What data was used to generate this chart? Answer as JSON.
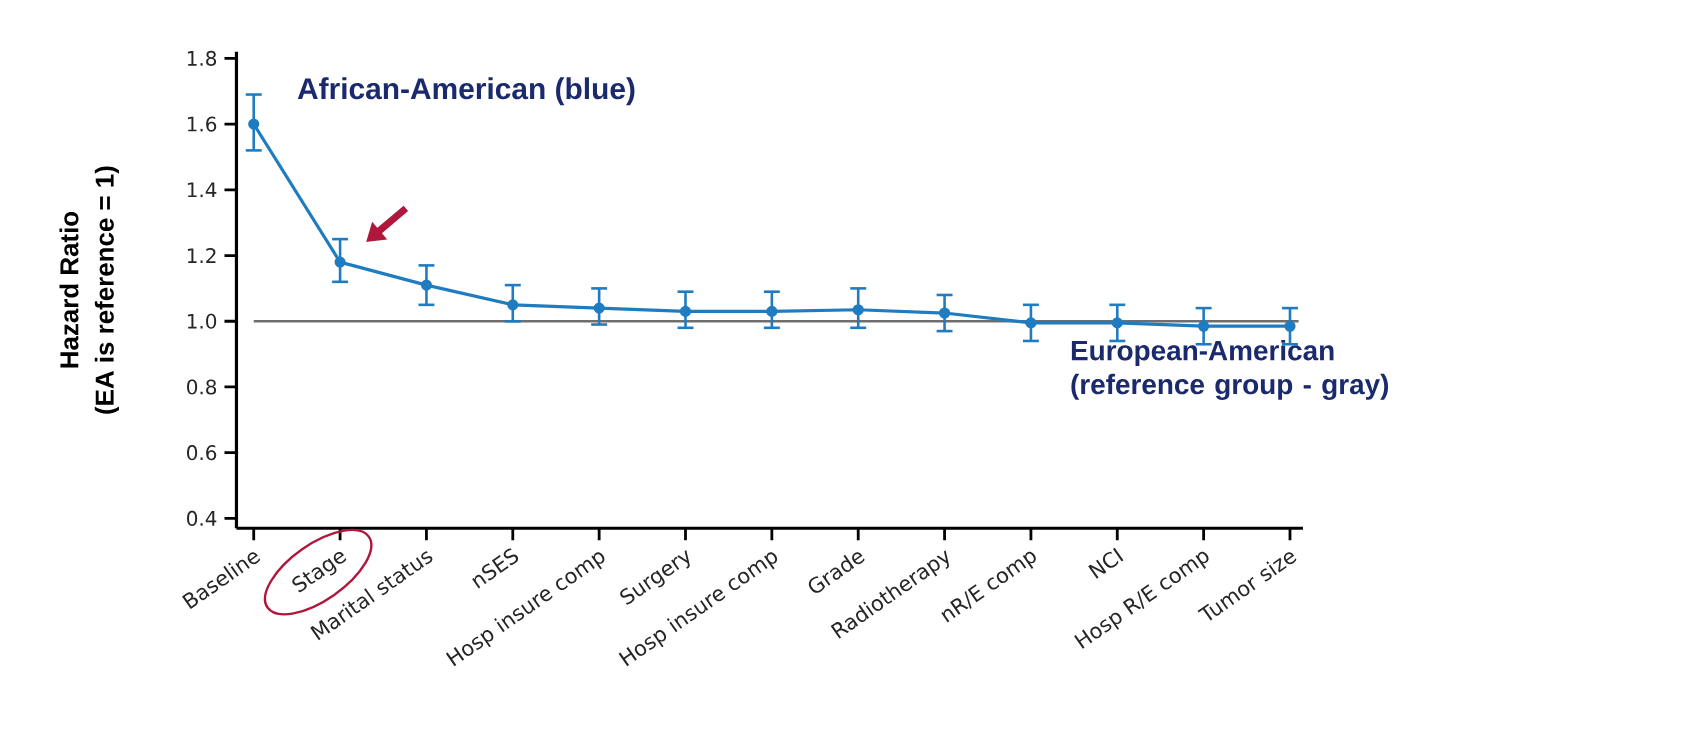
{
  "chart_data": {
    "type": "line",
    "ylabel": "Hazard Ratio",
    "annotations": [
      "(EA is reference = 1)"
    ],
    "categories": [
      "Baseline",
      "Stage",
      "Marital status",
      "nSES",
      "Hosp insure comp",
      "Surgery",
      "Hosp insure comp",
      "Grade",
      "Radiotherapy",
      "nR/E comp",
      "NCI",
      "Hosp R/E comp",
      "Tumor size"
    ],
    "series": [
      {
        "name": "African-American (blue)",
        "color": "#1f7cc1",
        "values": [
          1.6,
          1.18,
          1.11,
          1.05,
          1.04,
          1.03,
          1.03,
          1.035,
          1.025,
          0.995,
          0.995,
          0.985,
          0.985
        ],
        "errors": [
          [
            1.52,
            1.69
          ],
          [
            1.12,
            1.25
          ],
          [
            1.05,
            1.17
          ],
          [
            1.0,
            1.11
          ],
          [
            0.99,
            1.1
          ],
          [
            0.98,
            1.09
          ],
          [
            0.98,
            1.09
          ],
          [
            0.98,
            1.1
          ],
          [
            0.97,
            1.08
          ],
          [
            0.94,
            1.05
          ],
          [
            0.94,
            1.05
          ],
          [
            0.93,
            1.04
          ],
          [
            0.93,
            1.04
          ]
        ]
      }
    ],
    "ylim": [
      0.37,
      1.82
    ],
    "yticks": [
      {
        "value": 0.4,
        "label": "0.4"
      },
      {
        "value": 0.6,
        "label": "0.6"
      },
      {
        "value": 0.8,
        "label": "0.8"
      },
      {
        "value": 1.0,
        "label": "1.0"
      },
      {
        "value": 1.2,
        "label": "1.2"
      },
      {
        "value": 1.4,
        "label": "1.4"
      },
      {
        "value": 1.6,
        "label": "1.6"
      },
      {
        "value": 1.8,
        "label": "1.8"
      }
    ],
    "ref_lines": [
      {
        "axis": "y",
        "value": 1.0,
        "label": "European-American (reference group - gray)",
        "color": "#6e6e6e"
      }
    ],
    "marker": "circle",
    "grid": false
  }
}
